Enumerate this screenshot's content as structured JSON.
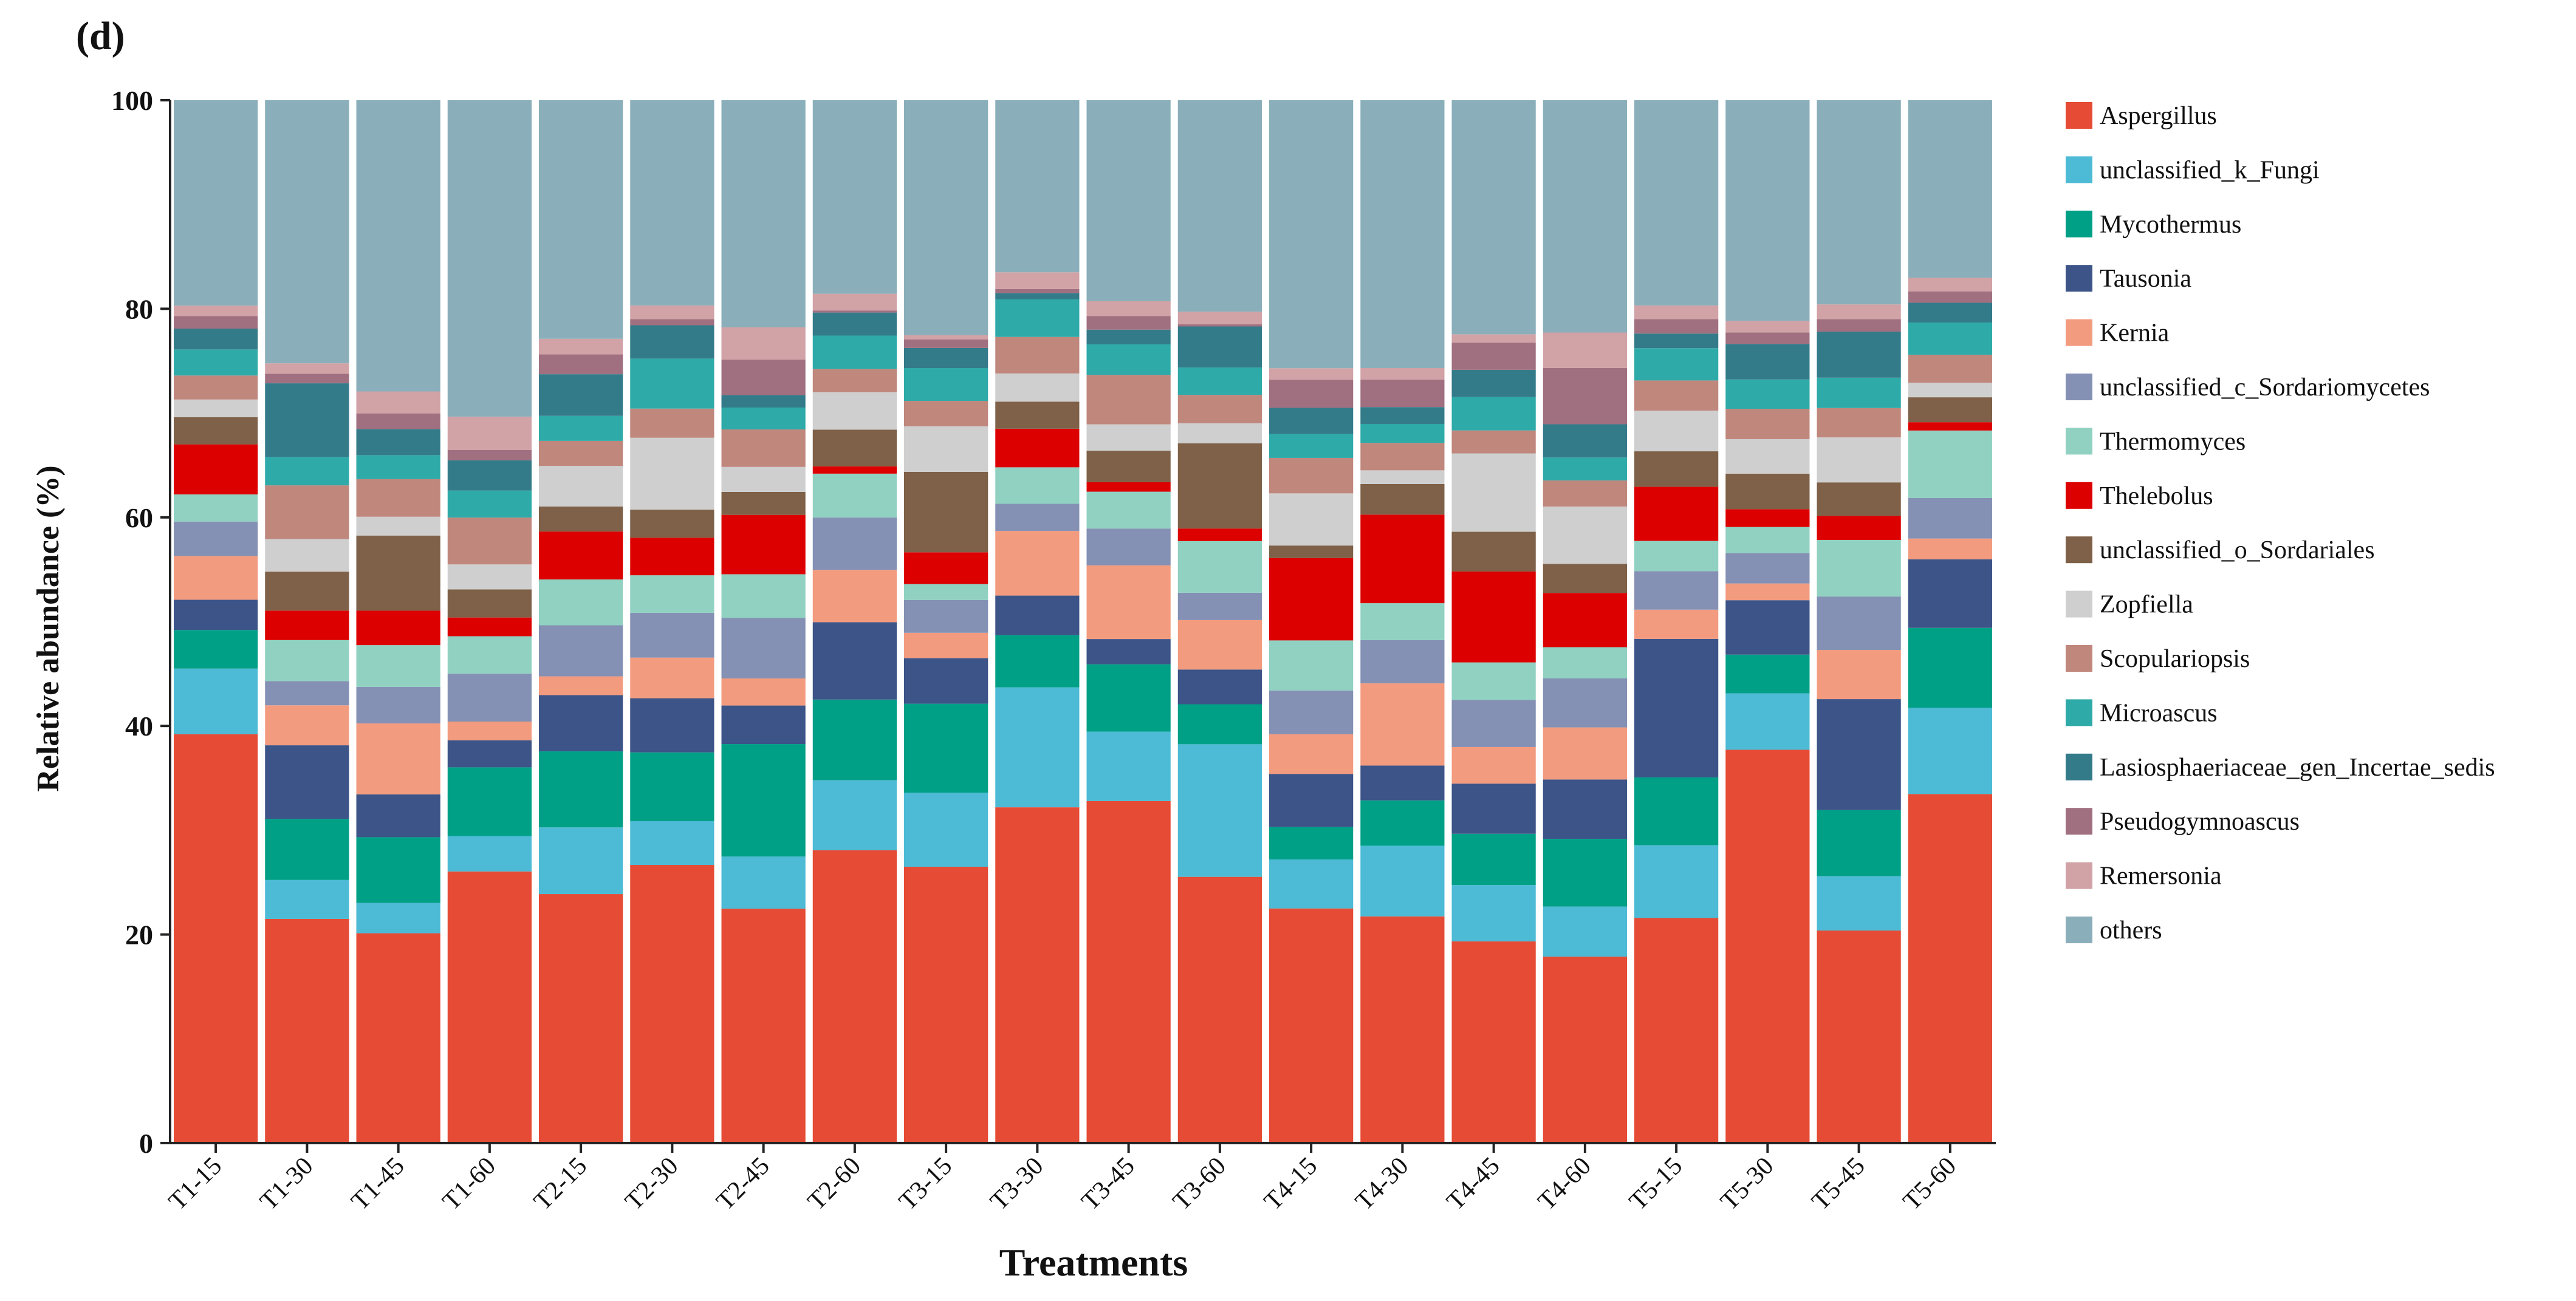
{
  "panel_label": "(d)",
  "chart_data": {
    "type": "bar",
    "stacked": true,
    "xlabel": "Treatments",
    "ylabel": "Relative abundance (%)",
    "ylim": [
      0,
      100
    ],
    "yticks": [
      0,
      20,
      40,
      60,
      80,
      100
    ],
    "legend_position": "right",
    "categories": [
      "T1-15",
      "T1-30",
      "T1-45",
      "T1-60",
      "T2-15",
      "T2-30",
      "T2-45",
      "T2-60",
      "T3-15",
      "T3-30",
      "T3-45",
      "T3-60",
      "T4-15",
      "T4-30",
      "T4-45",
      "T4-60",
      "T5-15",
      "T5-30",
      "T5-45",
      "T5-60"
    ],
    "series": [
      {
        "name": "Aspergillus",
        "color": "#E64B35",
        "values": [
          39.2,
          21.3,
          20.1,
          26.1,
          23.9,
          26.7,
          22.5,
          28.0,
          26.1,
          32.2,
          32.5,
          25.3,
          22.5,
          21.5,
          19.3,
          17.9,
          21.6,
          37.6,
          20.3,
          33.6
        ]
      },
      {
        "name": "unclassified_k_Fungi",
        "color": "#4DBBD5",
        "values": [
          6.3,
          3.7,
          2.9,
          3.4,
          6.4,
          4.2,
          5.0,
          6.7,
          7.0,
          11.5,
          6.6,
          12.6,
          4.7,
          6.7,
          5.4,
          4.8,
          7.0,
          5.4,
          5.2,
          8.3
        ]
      },
      {
        "name": "Mycothermus",
        "color": "#00A087",
        "values": [
          3.7,
          5.8,
          6.3,
          6.6,
          7.3,
          6.6,
          10.8,
          7.7,
          8.4,
          5.0,
          6.4,
          3.8,
          3.1,
          4.3,
          4.9,
          6.5,
          6.5,
          3.7,
          6.3,
          7.7
        ]
      },
      {
        "name": "Tausonia",
        "color": "#3C5488",
        "values": [
          2.9,
          7.0,
          4.1,
          2.6,
          5.4,
          5.2,
          3.7,
          7.4,
          4.3,
          3.8,
          2.4,
          3.3,
          5.1,
          3.3,
          4.8,
          5.7,
          13.3,
          5.2,
          10.6,
          6.6
        ]
      },
      {
        "name": "Kernia",
        "color": "#F39B7F",
        "values": [
          4.2,
          3.8,
          6.8,
          1.8,
          1.8,
          3.9,
          2.6,
          5.0,
          2.4,
          6.2,
          7.0,
          4.7,
          3.8,
          7.8,
          3.5,
          5.0,
          2.8,
          1.6,
          4.7,
          2.0
        ]
      },
      {
        "name": "unclassified_c_Sordariomycetes",
        "color": "#8491B4",
        "values": [
          3.3,
          2.3,
          3.5,
          4.6,
          4.9,
          4.3,
          5.8,
          5.0,
          3.1,
          2.6,
          3.5,
          2.6,
          4.2,
          4.1,
          4.5,
          4.7,
          3.7,
          2.9,
          5.1,
          3.9
        ]
      },
      {
        "name": "Thermomyces",
        "color": "#91D1C2",
        "values": [
          2.6,
          3.9,
          4.0,
          3.6,
          4.4,
          3.6,
          4.2,
          4.2,
          1.5,
          3.5,
          3.5,
          4.9,
          4.8,
          3.5,
          3.6,
          3.0,
          2.9,
          2.5,
          5.4,
          6.5
        ]
      },
      {
        "name": "Thelebolus",
        "color": "#DC0000",
        "values": [
          4.8,
          2.8,
          3.3,
          1.8,
          4.6,
          3.6,
          5.7,
          0.7,
          3.0,
          3.7,
          0.9,
          1.2,
          7.9,
          8.4,
          8.7,
          5.2,
          5.2,
          1.7,
          2.3,
          0.8
        ]
      },
      {
        "name": "unclassified_o_Sordariales",
        "color": "#7E6148",
        "values": [
          2.6,
          3.7,
          7.2,
          2.7,
          2.4,
          2.7,
          2.2,
          3.5,
          7.6,
          2.6,
          3.0,
          8.1,
          1.2,
          2.9,
          3.8,
          2.8,
          3.4,
          3.4,
          3.2,
          2.4
        ]
      },
      {
        "name": "Zopfiella",
        "color": "#CFCFCF",
        "values": [
          1.7,
          3.1,
          1.8,
          2.4,
          3.9,
          6.9,
          2.4,
          3.6,
          4.3,
          2.7,
          2.5,
          1.9,
          5.0,
          1.3,
          7.5,
          5.5,
          3.9,
          3.3,
          4.3,
          1.4
        ]
      },
      {
        "name": "Scopulariopsis",
        "color": "#C0877D",
        "values": [
          2.3,
          5.1,
          3.6,
          4.5,
          2.4,
          2.8,
          3.6,
          2.2,
          2.4,
          3.5,
          4.7,
          2.7,
          3.4,
          2.6,
          2.2,
          2.5,
          2.9,
          2.9,
          2.8,
          2.7
        ]
      },
      {
        "name": "Microascus",
        "color": "#2EAAA8",
        "values": [
          2.5,
          2.7,
          2.3,
          2.6,
          2.4,
          4.8,
          2.1,
          3.2,
          3.1,
          3.6,
          2.9,
          2.6,
          2.3,
          1.8,
          3.2,
          2.2,
          3.1,
          2.8,
          2.9,
          3.1
        ]
      },
      {
        "name": "Lasiosphaeriaceae_gen_Incertae_sedis",
        "color": "#347B8A",
        "values": [
          2.0,
          7.0,
          2.5,
          2.9,
          4.0,
          3.2,
          1.2,
          2.2,
          1.9,
          0.6,
          1.4,
          3.9,
          2.5,
          1.6,
          2.6,
          3.2,
          1.4,
          3.4,
          4.4,
          1.9
        ]
      },
      {
        "name": "Pseudogymnoascus",
        "color": "#A07080",
        "values": [
          1.2,
          0.9,
          1.5,
          1.0,
          1.9,
          0.6,
          3.4,
          0.2,
          0.8,
          0.4,
          1.3,
          0.2,
          2.7,
          2.6,
          2.6,
          5.4,
          1.4,
          1.1,
          1.2,
          1.1
        ]
      },
      {
        "name": "Remersonia",
        "color": "#D1A2A6",
        "values": [
          1.0,
          1.0,
          2.1,
          3.2,
          1.5,
          1.3,
          3.1,
          1.6,
          0.4,
          1.6,
          1.4,
          1.2,
          1.1,
          1.1,
          0.8,
          3.4,
          1.3,
          1.1,
          1.4,
          1.3
        ]
      },
      {
        "name": "others",
        "color": "#8AAFBB",
        "values": [
          19.7,
          25.0,
          27.9,
          30.4,
          22.9,
          19.7,
          21.8,
          18.5,
          22.2,
          16.5,
          19.1,
          20.1,
          25.7,
          25.4,
          22.4,
          22.3,
          19.7,
          21.1,
          19.5,
          17.1
        ]
      }
    ]
  }
}
